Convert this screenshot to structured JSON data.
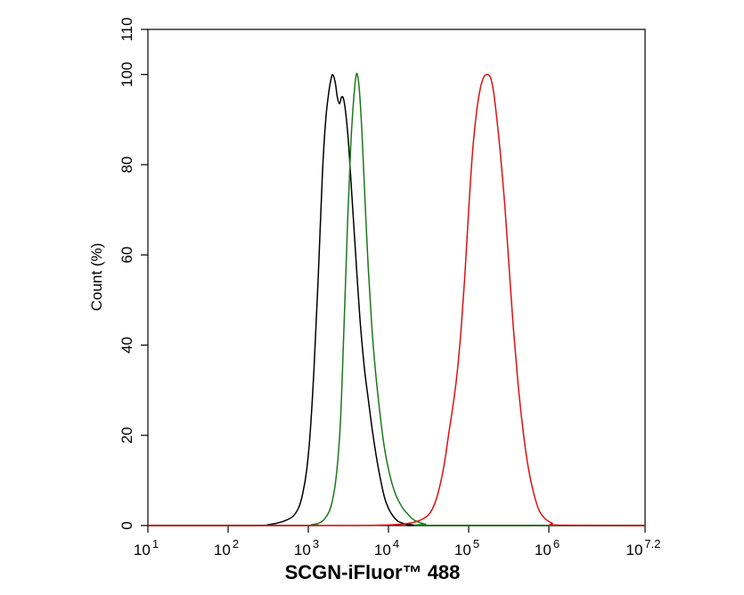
{
  "chart_data": {
    "type": "line",
    "title": "",
    "xlabel": "SCGN-iFluor™ 488",
    "ylabel": "Count  (%)",
    "x_scale": "log10",
    "xlim": [
      10,
      15848931.92
    ],
    "ylim": [
      0,
      110
    ],
    "grid": false,
    "legend": "none",
    "x_ticks": [
      {
        "base": "10",
        "exp": "1",
        "value": 10
      },
      {
        "base": "10",
        "exp": "2",
        "value": 100
      },
      {
        "base": "10",
        "exp": "3",
        "value": 1000
      },
      {
        "base": "10",
        "exp": "4",
        "value": 10000
      },
      {
        "base": "10",
        "exp": "5",
        "value": 100000
      },
      {
        "base": "10",
        "exp": "6",
        "value": 1000000
      },
      {
        "base": "10",
        "exp": "7.2",
        "value": 15848931.92
      }
    ],
    "y_ticks": [
      "0",
      "20",
      "40",
      "60",
      "80",
      "100",
      "110"
    ],
    "series": [
      {
        "color": "#000000",
        "x": [
          10,
          200,
          320,
          400,
          500,
          640,
          760,
          850,
          950,
          1050,
          1180,
          1330,
          1500,
          1650,
          1800,
          1950,
          2050,
          2180,
          2300,
          2450,
          2600,
          2760,
          2950,
          3200,
          3500,
          3900,
          4400,
          5000,
          5600,
          6300,
          7100,
          8000,
          9000,
          10200,
          11500,
          13000,
          14600,
          16500,
          19000,
          22000,
          30000,
          15848931.92
        ],
        "y": [
          0,
          0,
          0.2,
          0.5,
          1,
          2,
          4,
          7,
          12,
          20,
          35,
          55,
          78,
          90,
          96,
          99.5,
          99.8,
          98,
          95,
          93.5,
          95,
          94.5,
          91,
          84,
          73,
          60,
          46,
          35,
          28,
          21,
          15,
          10,
          6,
          3.5,
          2,
          1,
          0.6,
          0.3,
          0.2,
          0,
          0,
          0
        ]
      },
      {
        "color": "#1a7a1a",
        "x": [
          10,
          900,
          1100,
          1350,
          1600,
          1900,
          2200,
          2500,
          2800,
          3100,
          3400,
          3700,
          3950,
          4150,
          4400,
          4700,
          5100,
          5600,
          6200,
          6900,
          7700,
          8600,
          9600,
          10800,
          12200,
          13800,
          15600,
          17500,
          19500,
          22000,
          25000,
          29000,
          35000,
          15848931.92
        ],
        "y": [
          0,
          0,
          0.2,
          0.5,
          1.5,
          4,
          10,
          22,
          45,
          68,
          85,
          95,
          99.8,
          99.5,
          95,
          86,
          72,
          57,
          44,
          34,
          26,
          19,
          14,
          10,
          7,
          5,
          3.5,
          2.5,
          1.6,
          1,
          0.6,
          0.3,
          0,
          0
        ]
      },
      {
        "color": "#dd1111",
        "x": [
          10,
          3000,
          8000,
          12000,
          18000,
          25000,
          32000,
          38000,
          44000,
          50000,
          56000,
          63000,
          71000,
          80000,
          90000,
          100000,
          112000,
          126000,
          140000,
          155000,
          170000,
          180000,
          190000,
          205000,
          225000,
          250000,
          285000,
          320000,
          360000,
          410000,
          470000,
          540000,
          630000,
          750000,
          900000,
          1100000,
          1300000,
          15848931.92
        ],
        "y": [
          0,
          0,
          0.1,
          0.2,
          0.5,
          1.2,
          2.5,
          5,
          9,
          14,
          20,
          26,
          33,
          43,
          56,
          70,
          83,
          92,
          97,
          99.5,
          100,
          99.8,
          99,
          96,
          90,
          82,
          70,
          57,
          44,
          32,
          22,
          14,
          8,
          3.5,
          1.5,
          0.5,
          0.1,
          0
        ]
      }
    ]
  }
}
